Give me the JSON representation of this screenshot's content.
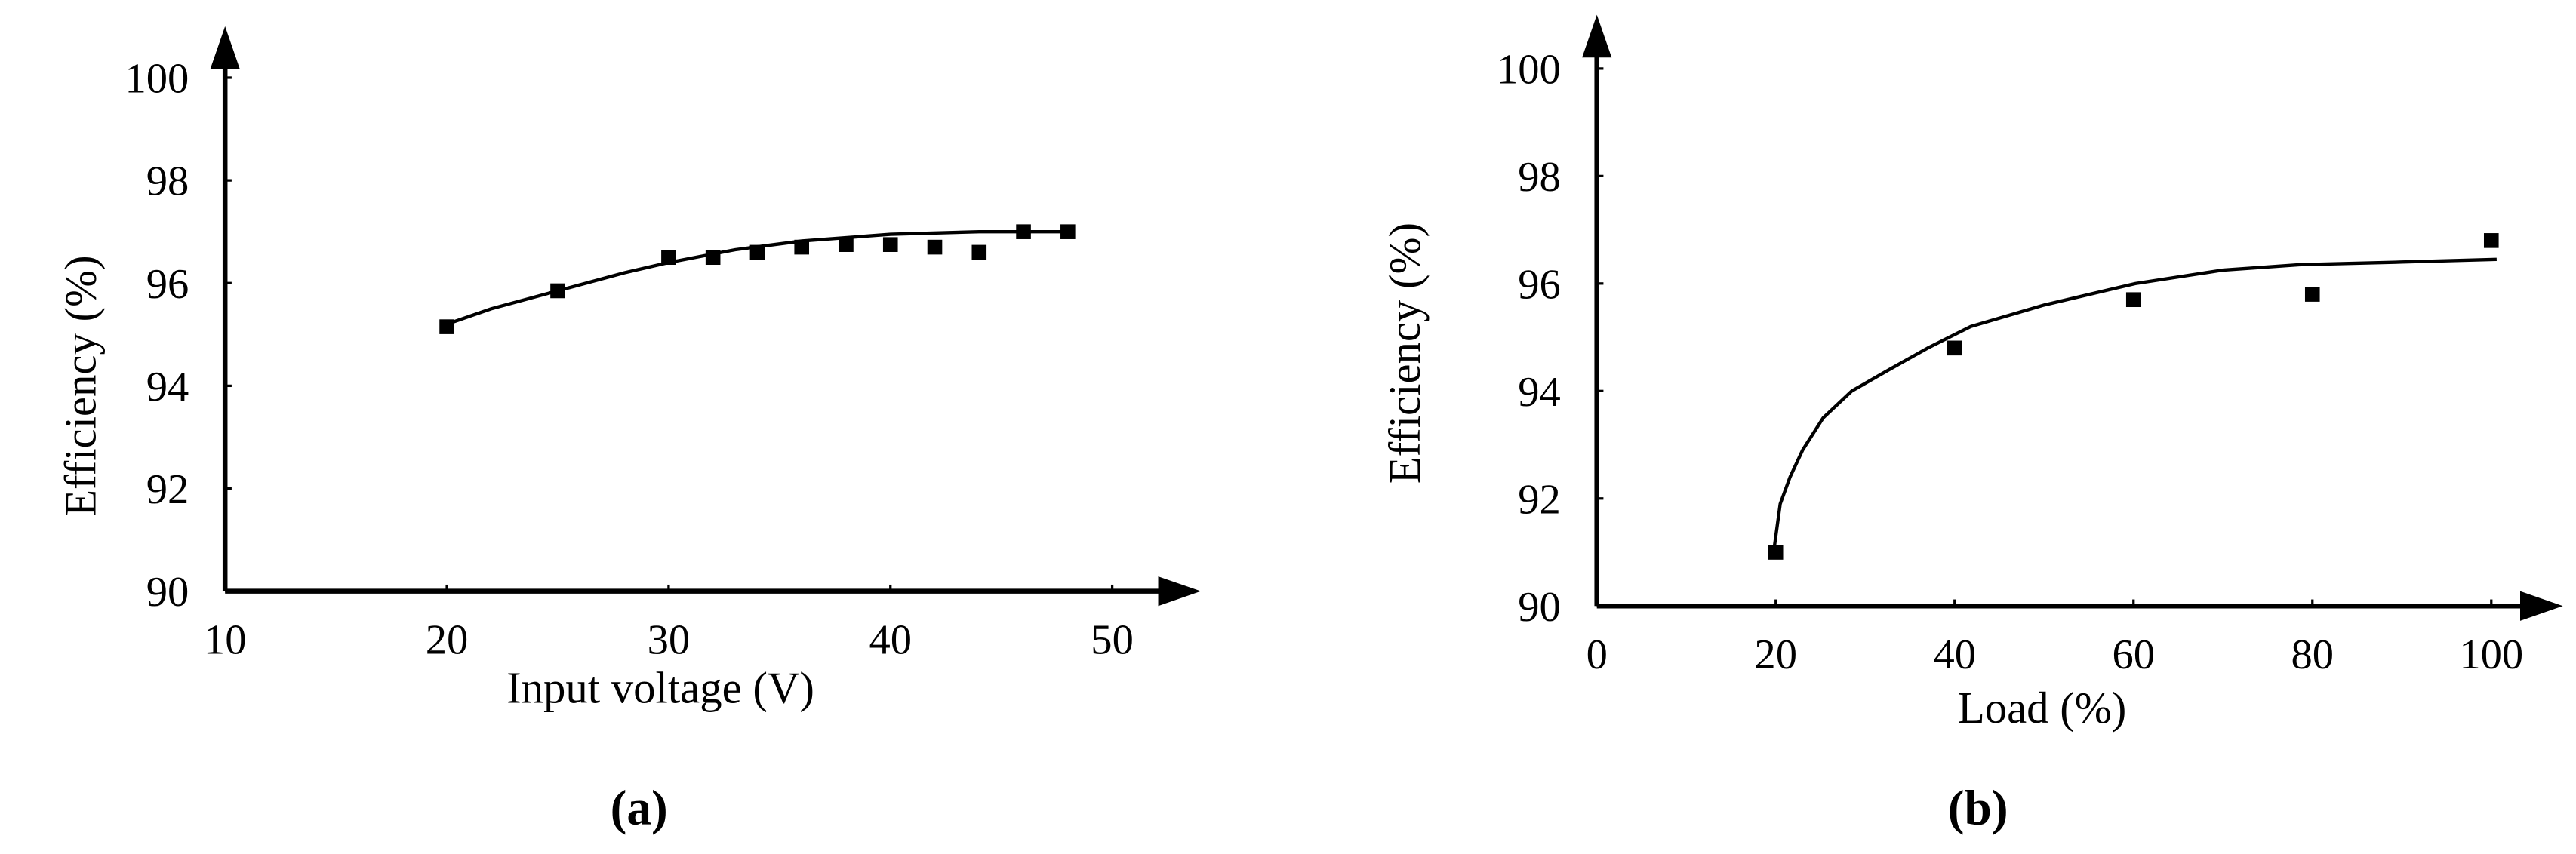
{
  "chart_data": [
    {
      "type": "scatter",
      "panel_label": "(a)",
      "x_label": "Input voltage (V)",
      "y_label": "Efficiency (%)",
      "xlim": [
        10,
        54
      ],
      "ylim": [
        90,
        101
      ],
      "xticks": [
        10,
        20,
        30,
        40,
        50
      ],
      "yticks": [
        90,
        92,
        94,
        96,
        98,
        100
      ],
      "marker_color": "#000000",
      "grid": false,
      "x": [
        20,
        25,
        30,
        32,
        34,
        36,
        38,
        40,
        42,
        44,
        46,
        48
      ],
      "values": [
        95.15,
        95.85,
        96.5,
        96.5,
        96.6,
        96.7,
        96.75,
        96.75,
        96.7,
        96.6,
        97.0,
        97.0
      ],
      "fit": {
        "x": [
          20,
          22,
          25,
          28,
          30,
          33,
          36,
          40,
          44,
          48
        ],
        "values": [
          95.2,
          95.5,
          95.85,
          96.2,
          96.4,
          96.65,
          96.82,
          96.95,
          97.0,
          97.0
        ]
      }
    },
    {
      "type": "scatter",
      "panel_label": "(b)",
      "x_label": "Load (%)",
      "y_label": "Efficiency (%)",
      "xlim": [
        0,
        108
      ],
      "ylim": [
        90,
        101
      ],
      "xticks": [
        0,
        20,
        40,
        60,
        80,
        100
      ],
      "yticks": [
        90,
        92,
        94,
        96,
        98,
        100
      ],
      "marker_color": "#000000",
      "grid": false,
      "x": [
        20,
        40,
        60,
        80,
        100
      ],
      "values": [
        91.0,
        94.8,
        95.7,
        95.8,
        96.8
      ],
      "fit": {
        "x": [
          19.8,
          20.5,
          21.6,
          23,
          25.3,
          28.5,
          32.7,
          37,
          41.8,
          50,
          60.2,
          70,
          78.5,
          90,
          100.6
        ],
        "values": [
          91.05,
          91.9,
          92.4,
          92.9,
          93.5,
          94.0,
          94.4,
          94.8,
          95.2,
          95.6,
          96.0,
          96.25,
          96.35,
          96.4,
          96.45
        ]
      }
    }
  ]
}
